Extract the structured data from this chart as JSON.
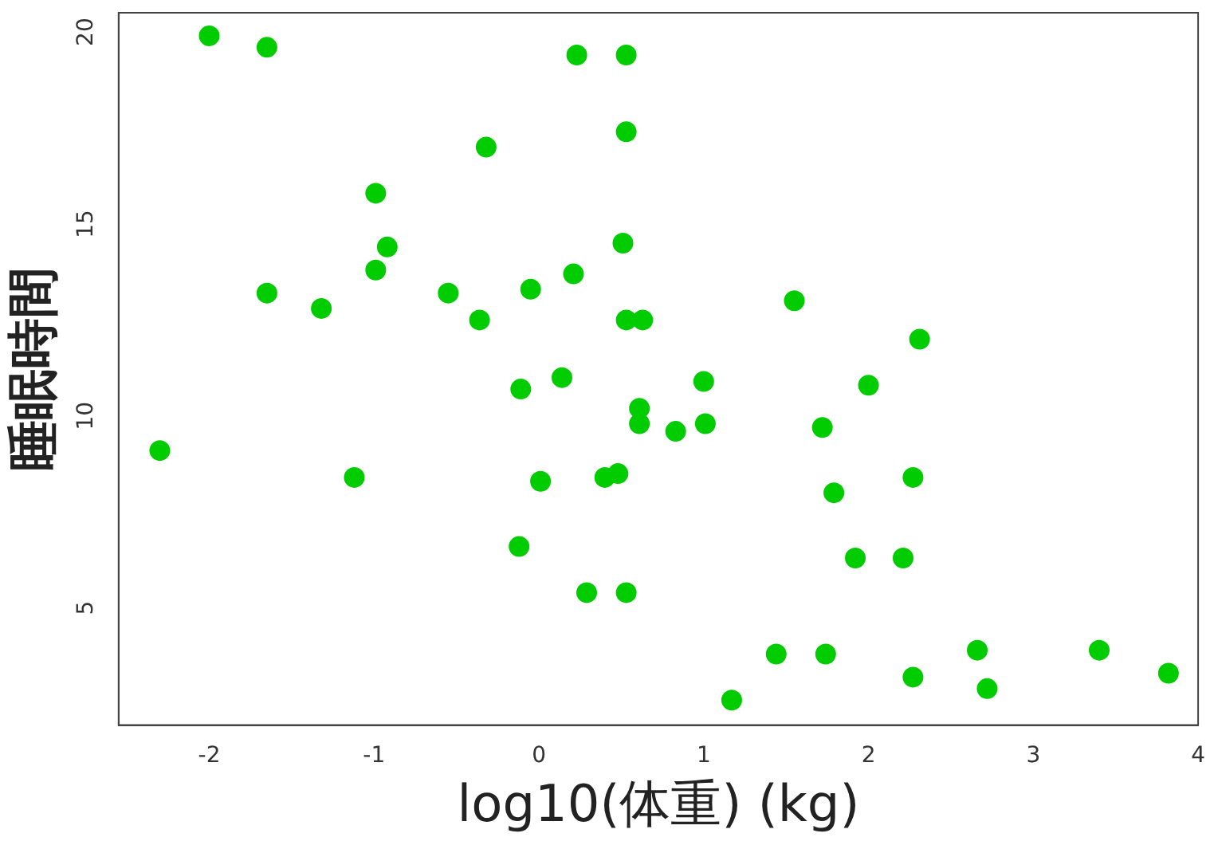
{
  "chart_data": {
    "type": "scatter",
    "xlabel": "log10(体重) (kg)",
    "ylabel": "睡眠時間",
    "x": [
      -2.0,
      -1.65,
      -2.3,
      -1.65,
      -1.32,
      -0.99,
      -0.99,
      -0.92,
      -1.12,
      -0.32,
      -0.55,
      -0.36,
      -0.05,
      -0.11,
      0.01,
      -0.12,
      0.14,
      0.21,
      0.23,
      0.29,
      0.4,
      0.48,
      0.53,
      0.53,
      0.51,
      0.53,
      0.63,
      0.61,
      0.61,
      0.53,
      0.83,
      1.0,
      1.01,
      1.17,
      1.44,
      1.55,
      1.72,
      1.74,
      1.79,
      2.0,
      1.92,
      2.21,
      2.31,
      2.27,
      2.27,
      2.66,
      2.72,
      3.4,
      3.82
    ],
    "series": [
      {
        "color": "#00cc00",
        "values": [
          19.9,
          19.6,
          9.1,
          13.2,
          12.8,
          15.8,
          13.8,
          14.4,
          8.4,
          17.0,
          13.2,
          12.5,
          13.3,
          10.7,
          8.3,
          6.6,
          11.0,
          13.7,
          19.4,
          5.4,
          8.4,
          8.5,
          19.4,
          17.4,
          14.5,
          12.5,
          12.5,
          10.2,
          9.8,
          5.4,
          9.6,
          10.9,
          9.8,
          2.6,
          3.8,
          13.0,
          9.7,
          3.8,
          8.0,
          10.8,
          6.3,
          6.3,
          12.0,
          8.4,
          3.2,
          3.9,
          2.9,
          3.9,
          3.3
        ]
      }
    ],
    "xlim": [
      -2.55,
      4.0
    ],
    "ylim": [
      1.95,
      20.5
    ],
    "xticks": [
      -2,
      -1,
      0,
      1,
      2,
      3,
      4
    ],
    "yticks": [
      5,
      10,
      15,
      20
    ],
    "grid": false,
    "legend": false,
    "marker": "circle"
  }
}
